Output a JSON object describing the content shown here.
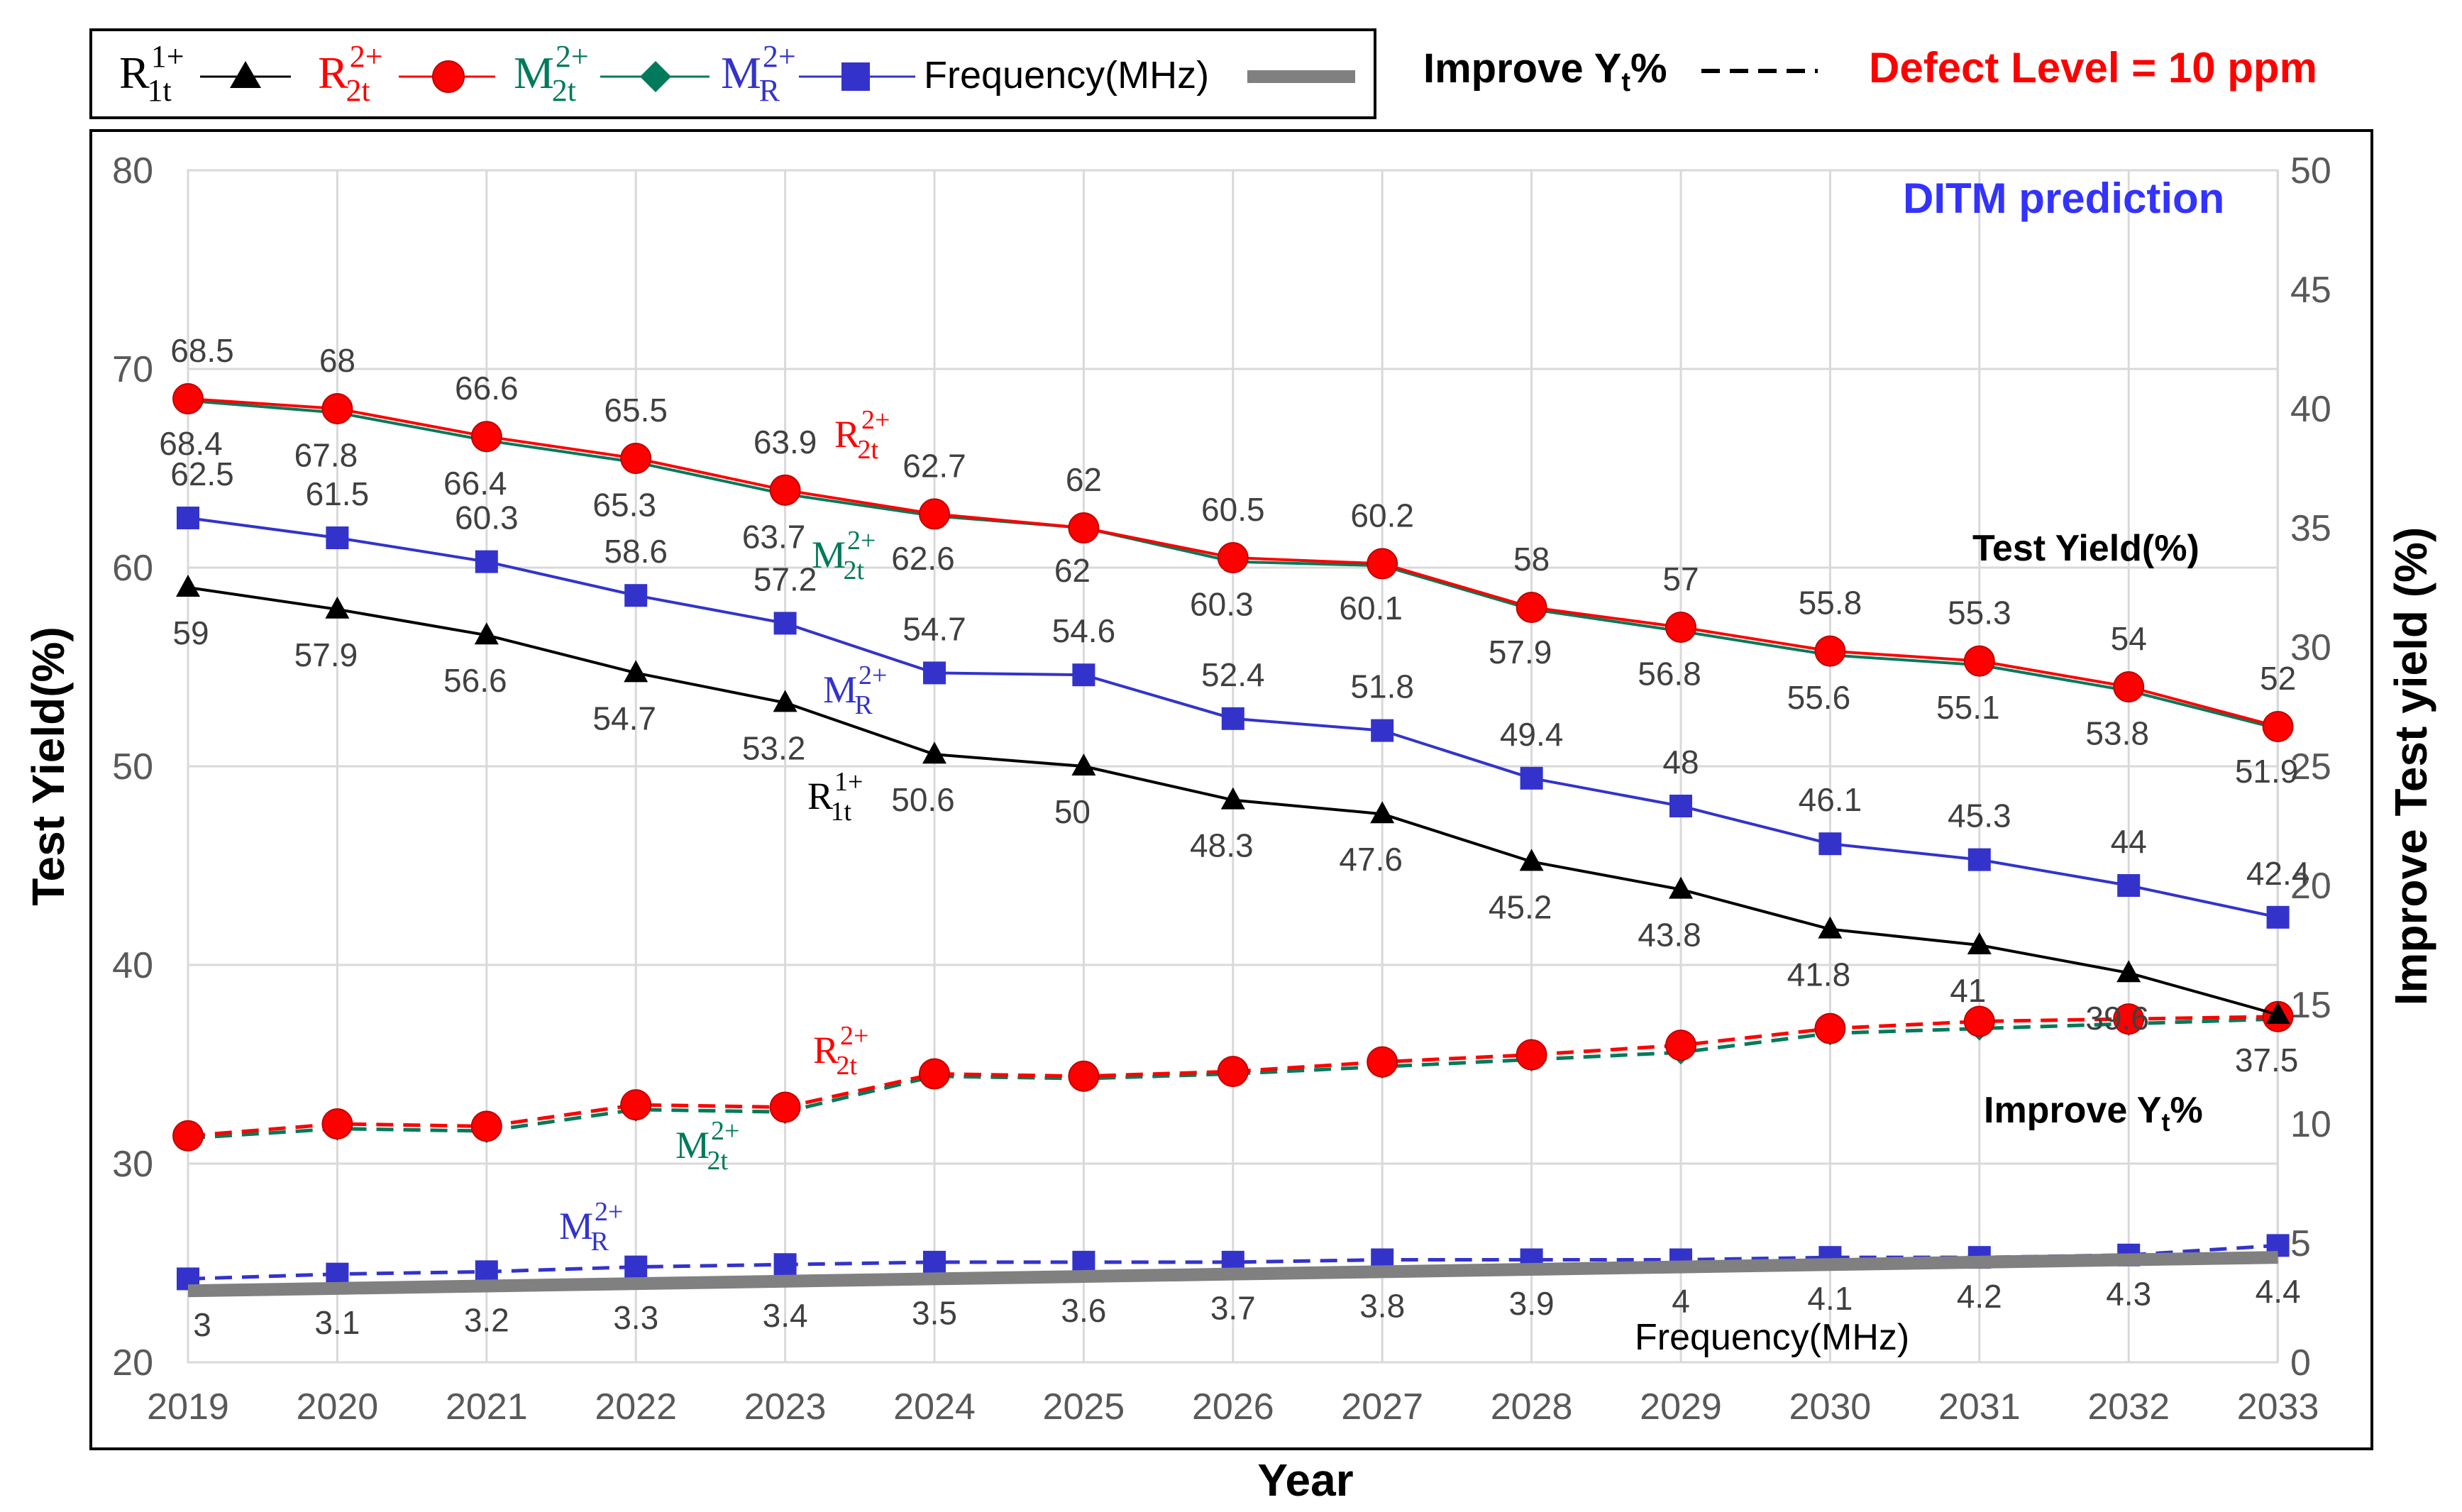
{
  "legend": {
    "r1t_base": "R",
    "r1t_sup": "1+",
    "r1t_sub": "1t",
    "r2t_base": "R",
    "r2t_sup": "2+",
    "r2t_sub": "2t",
    "m2t_base": "M",
    "m2t_sup": "2+",
    "m2t_sub": "2t",
    "mr_base": "M",
    "mr_sup": "2+",
    "mr_sub": "R",
    "frequency": "Frequency(MHz)",
    "improve_pre": "Improve Y",
    "improve_sub": "t",
    "improve_post": "%",
    "defect_level": "Defect Level = 10 ppm"
  },
  "labels": {
    "ditm": "DITM prediction",
    "test_yield": "Test Yield(%)",
    "improve_pre": "Improve Y",
    "improve_sub": "t",
    "improve_post": "%",
    "frequency": "Frequency(MHz)",
    "r2t_base": "R",
    "r2t_sup": "2+",
    "r2t_sub": "2t",
    "m2t_base": "M",
    "m2t_sup": "2+",
    "m2t_sub": "2t",
    "mr_base": "M",
    "mr_sup": "2+",
    "mr_sub": "R",
    "r1t_base": "R",
    "r1t_sup": "1+",
    "r1t_sub": "1t"
  },
  "colors": {
    "r1t": "#000000",
    "r2t": "#ff0000",
    "m2t": "#007a5a",
    "mr": "#3333cc",
    "frequency": "#808080",
    "ditm": "#3333ff",
    "defect": "#ff0000"
  },
  "chart_data": {
    "type": "line",
    "title": "",
    "xlabel": "Year",
    "ylabel": "Test Yield(%)",
    "y2label": "Improve Test yield (%)",
    "categories": [
      "2019",
      "2020",
      "2021",
      "2022",
      "2023",
      "2024",
      "2025",
      "2026",
      "2027",
      "2028",
      "2029",
      "2030",
      "2031",
      "2032",
      "2033"
    ],
    "ylim": [
      20,
      80
    ],
    "y_ticks": [
      "20",
      "30",
      "40",
      "50",
      "60",
      "70",
      "80"
    ],
    "y2lim": [
      0,
      50
    ],
    "y2_ticks": [
      "0",
      "5",
      "10",
      "15",
      "20",
      "25",
      "30",
      "35",
      "40",
      "45",
      "50"
    ],
    "grid": true,
    "series": [
      {
        "name": "R1t1+ Test Yield",
        "axis": "left",
        "style": "solid",
        "marker": "triangle",
        "color_key": "r1t",
        "values": [
          59,
          57.9,
          56.6,
          54.7,
          53.2,
          50.6,
          50,
          48.3,
          47.6,
          45.2,
          43.8,
          41.8,
          41,
          39.6,
          37.5
        ],
        "labels": [
          "59",
          "57.9",
          "56.6",
          "54.7",
          "53.2",
          "50.6",
          "50",
          "48.3",
          "47.6",
          "45.2",
          "43.8",
          "41.8",
          "41",
          "39.6",
          "37.5"
        ]
      },
      {
        "name": "R2t2+ Test Yield",
        "axis": "left",
        "style": "solid",
        "marker": "circle",
        "color_key": "r2t",
        "values": [
          68.5,
          68,
          66.6,
          65.5,
          63.9,
          62.7,
          62,
          60.5,
          60.2,
          58,
          57,
          55.8,
          55.3,
          54,
          52
        ],
        "labels": [
          "68.5",
          "68",
          "66.6",
          "65.5",
          "63.9",
          "62.7",
          "62",
          "60.5",
          "60.2",
          "58",
          "57",
          "55.8",
          "55.3",
          "54",
          "52"
        ]
      },
      {
        "name": "M2t2+ Test Yield",
        "axis": "left",
        "style": "solid",
        "marker": "diamond",
        "color_key": "m2t",
        "values": [
          68.4,
          67.8,
          66.4,
          65.3,
          63.7,
          62.6,
          62,
          60.3,
          60.1,
          57.9,
          56.8,
          55.6,
          55.1,
          53.8,
          51.9
        ],
        "labels": [
          "68.4",
          "67.8",
          "66.4",
          "65.3",
          "63.7",
          "62.6",
          "62",
          "60.3",
          "60.1",
          "57.9",
          "56.8",
          "55.6",
          "55.1",
          "53.8",
          "51.9"
        ]
      },
      {
        "name": "MR2+ Test Yield",
        "axis": "left",
        "style": "solid",
        "marker": "square",
        "color_key": "mr",
        "values": [
          62.5,
          61.5,
          60.3,
          58.6,
          57.2,
          54.7,
          54.6,
          52.4,
          51.8,
          49.4,
          48,
          46.1,
          45.3,
          44,
          42.4
        ],
        "labels": [
          "62.5",
          "61.5",
          "60.3",
          "58.6",
          "57.2",
          "54.7",
          "54.6",
          "52.4",
          "51.8",
          "49.4",
          "48",
          "46.1",
          "45.3",
          "44",
          "42.4"
        ]
      },
      {
        "name": "R2t2+ Improve Yt%",
        "axis": "right",
        "style": "dashed",
        "marker": "circle",
        "color_key": "r2t",
        "values": [
          9.5,
          10,
          9.9,
          10.8,
          10.7,
          12.1,
          12,
          12.2,
          12.6,
          12.9,
          13.3,
          14,
          14.3,
          14.4,
          14.5
        ]
      },
      {
        "name": "M2t2+ Improve Yt%",
        "axis": "right",
        "style": "dashed",
        "marker": "diamond",
        "color_key": "m2t",
        "values": [
          9.4,
          9.8,
          9.7,
          10.6,
          10.5,
          12,
          11.9,
          12.1,
          12.4,
          12.7,
          13,
          13.8,
          14,
          14.2,
          14.4
        ]
      },
      {
        "name": "MR2+ Improve Yt%",
        "axis": "right",
        "style": "dashed",
        "marker": "square",
        "color_key": "mr",
        "values": [
          3.5,
          3.7,
          3.8,
          4.0,
          4.1,
          4.2,
          4.2,
          4.2,
          4.3,
          4.3,
          4.3,
          4.4,
          4.4,
          4.5,
          4.9
        ]
      },
      {
        "name": "Frequency(MHz)",
        "axis": "right",
        "style": "solid-thick",
        "marker": "none",
        "color_key": "frequency",
        "values": [
          3,
          3.1,
          3.2,
          3.3,
          3.4,
          3.5,
          3.6,
          3.7,
          3.8,
          3.9,
          4,
          4.1,
          4.2,
          4.3,
          4.4
        ],
        "labels": [
          "3",
          "3.1",
          "3.2",
          "3.3",
          "3.4",
          "3.5",
          "3.6",
          "3.7",
          "3.8",
          "3.9",
          "4",
          "4.1",
          "4.2",
          "4.3",
          "4.4"
        ]
      }
    ]
  }
}
